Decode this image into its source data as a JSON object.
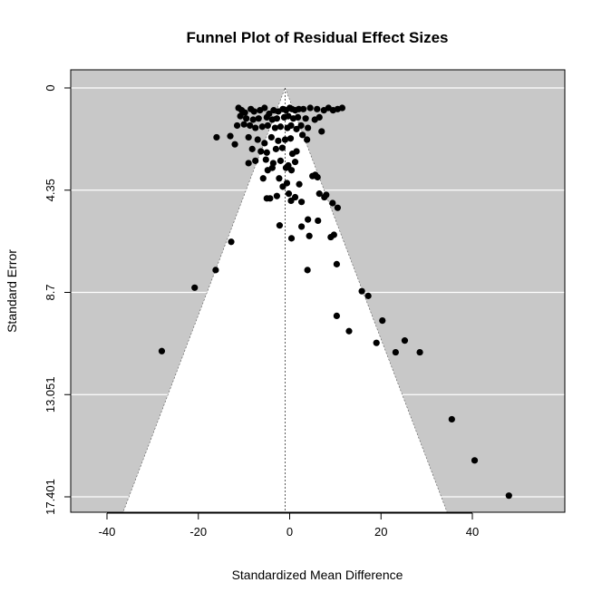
{
  "chart_data": {
    "type": "scatter",
    "title": "Funnel Plot of Residual Effect Sizes",
    "xlabel": "Standardized Mean Difference",
    "ylabel": "Standard Error",
    "xlim": [
      -47.5,
      60.5
    ],
    "ylim": [
      0,
      18.1
    ],
    "y_reversed": true,
    "xticks": [
      -40,
      -20,
      0,
      20,
      40
    ],
    "xtick_labels": [
      "-40",
      "-20",
      "0",
      "20",
      "40"
    ],
    "yticks": [
      0,
      4.35,
      8.7,
      13.051,
      17.401
    ],
    "ytick_labels": [
      "0",
      "4.35",
      "8.7",
      "13.051",
      "17.401"
    ],
    "grid": "horizontal at y ticks",
    "funnel": {
      "center": -1.0,
      "multiplier": 1.96,
      "se_max": 18.1
    },
    "colors": {
      "panel": "#c8c8c8",
      "funnel_region": "#ffffff",
      "points": "#000000",
      "grid": "#ffffff"
    },
    "points": [
      [
        -11.2,
        0.85
      ],
      [
        -10.5,
        0.95
      ],
      [
        -9.8,
        1.05
      ],
      [
        -8.5,
        0.9
      ],
      [
        -7.8,
        1.0
      ],
      [
        -6.5,
        0.95
      ],
      [
        -5.5,
        0.85
      ],
      [
        -4.5,
        1.1
      ],
      [
        -3.5,
        0.95
      ],
      [
        -2.5,
        1.0
      ],
      [
        -1.5,
        0.9
      ],
      [
        -0.8,
        0.95
      ],
      [
        0.0,
        0.85
      ],
      [
        0.5,
        0.9
      ],
      [
        1.2,
        0.95
      ],
      [
        2.0,
        0.9
      ],
      [
        3.0,
        0.9
      ],
      [
        4.5,
        0.85
      ],
      [
        6.0,
        0.9
      ],
      [
        7.5,
        0.95
      ],
      [
        8.5,
        0.85
      ],
      [
        9.5,
        0.95
      ],
      [
        10.5,
        0.9
      ],
      [
        11.5,
        0.85
      ],
      [
        -10.8,
        1.2
      ],
      [
        -9.5,
        1.3
      ],
      [
        -8.0,
        1.35
      ],
      [
        -6.8,
        1.3
      ],
      [
        -5.0,
        1.25
      ],
      [
        -3.8,
        1.35
      ],
      [
        -2.8,
        1.3
      ],
      [
        -1.2,
        1.25
      ],
      [
        -0.3,
        1.2
      ],
      [
        0.8,
        1.3
      ],
      [
        1.8,
        1.25
      ],
      [
        3.5,
        1.3
      ],
      [
        5.5,
        1.35
      ],
      [
        6.5,
        1.25
      ],
      [
        -11.5,
        1.6
      ],
      [
        -10.0,
        1.55
      ],
      [
        -8.7,
        1.6
      ],
      [
        -7.5,
        1.7
      ],
      [
        -6.0,
        1.65
      ],
      [
        -4.8,
        1.6
      ],
      [
        -3.2,
        1.7
      ],
      [
        -2.0,
        1.65
      ],
      [
        -0.5,
        1.7
      ],
      [
        0.3,
        1.6
      ],
      [
        1.5,
        1.75
      ],
      [
        2.5,
        1.6
      ],
      [
        4.0,
        1.7
      ],
      [
        7.0,
        1.85
      ],
      [
        -16.0,
        2.1
      ],
      [
        -13.0,
        2.05
      ],
      [
        -12.0,
        2.4
      ],
      [
        -9.0,
        2.1
      ],
      [
        -7.0,
        2.2
      ],
      [
        -5.5,
        2.35
      ],
      [
        -4.0,
        2.1
      ],
      [
        -2.5,
        2.25
      ],
      [
        -1.0,
        2.2
      ],
      [
        0.2,
        2.15
      ],
      [
        2.8,
        2.0
      ],
      [
        3.8,
        2.2
      ],
      [
        -8.2,
        2.6
      ],
      [
        -6.3,
        2.7
      ],
      [
        -5.0,
        2.75
      ],
      [
        -3.0,
        2.6
      ],
      [
        -1.6,
        2.55
      ],
      [
        0.6,
        2.8
      ],
      [
        1.5,
        2.7
      ],
      [
        -7.5,
        3.1
      ],
      [
        -5.2,
        3.05
      ],
      [
        -3.6,
        3.2
      ],
      [
        -2.0,
        3.1
      ],
      [
        -0.3,
        3.3
      ],
      [
        1.2,
        3.15
      ],
      [
        -9.0,
        3.2
      ],
      [
        -4.8,
        3.5
      ],
      [
        -3.8,
        3.4
      ],
      [
        -0.8,
        3.4
      ],
      [
        0.4,
        3.5
      ],
      [
        5.0,
        3.75
      ],
      [
        5.6,
        3.7
      ],
      [
        6.1,
        3.8
      ],
      [
        -5.8,
        3.85
      ],
      [
        -2.3,
        3.85
      ],
      [
        -0.6,
        4.05
      ],
      [
        -1.5,
        4.2
      ],
      [
        2.1,
        4.1
      ],
      [
        -0.2,
        4.5
      ],
      [
        0.3,
        4.8
      ],
      [
        -5.0,
        4.7
      ],
      [
        -4.3,
        4.7
      ],
      [
        -2.8,
        4.6
      ],
      [
        1.2,
        4.65
      ],
      [
        2.6,
        4.85
      ],
      [
        6.5,
        4.5
      ],
      [
        7.6,
        4.65
      ],
      [
        8.0,
        4.55
      ],
      [
        9.4,
        4.9
      ],
      [
        10.5,
        5.1
      ],
      [
        4.0,
        5.6
      ],
      [
        6.2,
        5.65
      ],
      [
        -2.2,
        5.85
      ],
      [
        2.6,
        5.9
      ],
      [
        4.3,
        6.3
      ],
      [
        0.4,
        6.4
      ],
      [
        9.0,
        6.35
      ],
      [
        9.7,
        6.25
      ],
      [
        -12.8,
        6.55
      ],
      [
        -16.2,
        7.75
      ],
      [
        3.9,
        7.75
      ],
      [
        10.3,
        7.5
      ],
      [
        -20.8,
        8.5
      ],
      [
        15.8,
        8.65
      ],
      [
        17.2,
        8.85
      ],
      [
        10.3,
        9.7
      ],
      [
        20.3,
        9.9
      ],
      [
        13.0,
        10.35
      ],
      [
        25.2,
        10.75
      ],
      [
        19.0,
        10.85
      ],
      [
        -28.0,
        11.2
      ],
      [
        23.2,
        11.25
      ],
      [
        28.5,
        11.25
      ],
      [
        35.5,
        14.1
      ],
      [
        40.5,
        15.85
      ],
      [
        48.0,
        17.35
      ]
    ]
  }
}
